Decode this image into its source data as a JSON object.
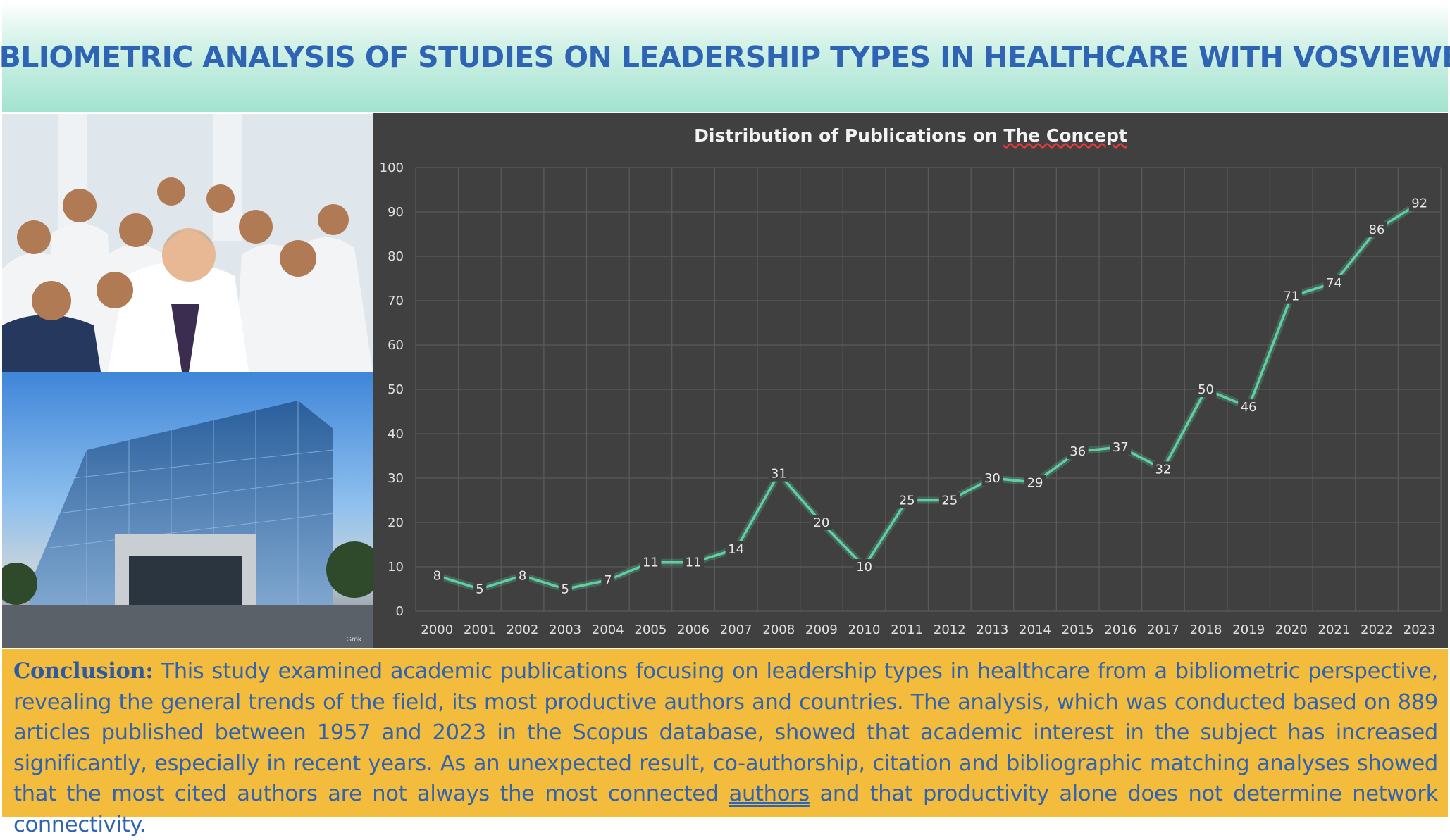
{
  "header": {
    "title": "BIBLIOMETRIC ANALYSIS OF STUDIES ON LEADERSHIP TYPES IN HEALTHCARE WITH VOSVIEWER"
  },
  "photos": {
    "top": "team-of-doctors-photo",
    "bottom": "hospital-building-photo",
    "watermark": "Grok"
  },
  "chart_data": {
    "type": "line",
    "title_part1": "Distribution of Publications on ",
    "title_part2": "The Concept",
    "x": [
      "2000",
      "2001",
      "2002",
      "2003",
      "2004",
      "2005",
      "2006",
      "2007",
      "2008",
      "2009",
      "2010",
      "2011",
      "2012",
      "2013",
      "2014",
      "2015",
      "2016",
      "2017",
      "2018",
      "2019",
      "2020",
      "2021",
      "2022",
      "2023"
    ],
    "values": [
      8,
      5,
      8,
      5,
      7,
      11,
      11,
      14,
      31,
      20,
      10,
      25,
      25,
      30,
      29,
      36,
      37,
      32,
      50,
      46,
      71,
      74,
      86,
      92
    ],
    "ylim": [
      0,
      100
    ],
    "yticks": [
      0,
      10,
      20,
      30,
      40,
      50,
      60,
      70,
      80,
      90,
      100
    ],
    "grid": true,
    "data_labels": true,
    "line_color": "#5fd0a4",
    "background": "#404040"
  },
  "conclusion": {
    "lead": "Conclusion:",
    "body": " This study examined academic publications focusing on leadership types in healthcare from a bibliometric perspective, revealing the general trends of the field, its most productive authors and countries. The analysis, which was conducted based on 889 articles published between 1957 and 2023 in the Scopus database, showed that academic interest in the subject has increased significantly, especially in recent years. As an unexpected result, co-authorship, citation and bibliographic matching analyses showed that the most cited authors are not always the most connected ",
    "underlined": "authors",
    "tail": " and that productivity alone does not determine network connectivity."
  }
}
